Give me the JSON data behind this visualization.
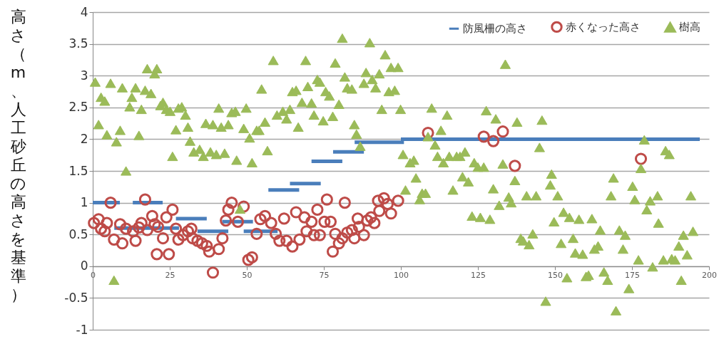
{
  "chart_data": {
    "type": "scatter",
    "ylabel": "高さ（m、人工砂丘の高さを基準）",
    "xlim": [
      0,
      200
    ],
    "xticks": [
      0,
      25,
      50,
      75,
      100,
      125,
      150,
      175,
      200
    ],
    "ylim": [
      -1,
      4
    ],
    "yticks": [
      -1,
      -0.5,
      0,
      0.5,
      1,
      1.5,
      2,
      2.5,
      3,
      3.5,
      4
    ],
    "grid": "y",
    "legend": "top right",
    "series": [
      {
        "name": "防風柵の高さ",
        "type": "line",
        "color": "#4a7ebb",
        "line_style": "solid",
        "x": [
          0,
          8.8,
          null,
          13,
          22.7,
          null,
          7,
          28,
          null,
          27,
          37,
          null,
          34,
          44,
          null,
          42,
          52,
          null,
          49,
          60,
          null,
          57,
          67,
          null,
          64,
          74,
          null,
          71,
          81,
          null,
          78,
          88,
          null,
          85,
          101,
          null,
          100,
          197
        ],
        "values": [
          1,
          1,
          null,
          1,
          1,
          null,
          0.6,
          0.6,
          null,
          0.75,
          0.75,
          null,
          0.55,
          0.55,
          null,
          0.7,
          0.7,
          null,
          0.55,
          0.55,
          null,
          1.2,
          1.2,
          null,
          1.3,
          1.3,
          null,
          1.65,
          1.65,
          null,
          1.8,
          1.8,
          null,
          1.95,
          1.95,
          null,
          2,
          2
        ]
      },
      {
        "name": "赤くなった高さ",
        "type": "scatter",
        "color": "#be4b48",
        "marker": "circle",
        "x": [
          0.4,
          1.9,
          2.7,
          3.9,
          4.6,
          5.8,
          6.9,
          8.9,
          9.6,
          10.8,
          13.1,
          13.9,
          15,
          15.8,
          17,
          17.7,
          19.3,
          20.1,
          20.8,
          21.2,
          22.8,
          23.9,
          24.7,
          25.9,
          27,
          27.8,
          29.3,
          30.9,
          32,
          32.4,
          34,
          35.5,
          37,
          37.8,
          39,
          40.9,
          42.1,
          43.2,
          44,
          45.1,
          47.1,
          49,
          50.5,
          51.7,
          53.2,
          54.4,
          55.9,
          57.9,
          59.4,
          60.6,
          62.1,
          62.9,
          64.8,
          66,
          67.1,
          68.7,
          69.4,
          71,
          71.8,
          72.9,
          73.7,
          75.2,
          76,
          77.2,
          77.9,
          78.7,
          79.9,
          81,
          81.8,
          82.6,
          84.1,
          84.9,
          86,
          86.4,
          88,
          89.1,
          90.3,
          91.4,
          92.6,
          93,
          94.5,
          95.7,
          96.8,
          99.1,
          108.8,
          126.9,
          130,
          133.1,
          137,
          177.9
        ],
        "values": [
          0.68,
          0.74,
          0.59,
          0.55,
          0.68,
          1.0,
          0.42,
          0.66,
          0.36,
          0.59,
          0.55,
          0.4,
          0.61,
          0.68,
          1.05,
          0.57,
          0.79,
          0.66,
          0.19,
          0.62,
          0.44,
          0.77,
          0.19,
          0.89,
          0.59,
          0.42,
          0.49,
          0.55,
          0.59,
          0.44,
          0.4,
          0.36,
          0.32,
          0.23,
          -0.1,
          0.27,
          0.44,
          0.72,
          0.89,
          1.0,
          0.7,
          0.94,
          0.1,
          0.14,
          0.51,
          0.74,
          0.79,
          0.68,
          0.51,
          0.4,
          0.75,
          0.4,
          0.31,
          0.85,
          0.42,
          0.77,
          0.55,
          0.7,
          0.49,
          0.89,
          0.49,
          0.7,
          1.05,
          0.7,
          0.23,
          0.51,
          0.36,
          0.44,
          1.0,
          0.53,
          0.57,
          0.44,
          0.75,
          0.62,
          0.49,
          0.72,
          0.77,
          0.68,
          1.03,
          0.87,
          1.07,
          0.98,
          0.83,
          1.03,
          2.1,
          2.04,
          1.97,
          2.12,
          1.58,
          1.69
        ]
      },
      {
        "name": "樹高",
        "type": "scatter",
        "color": "#9bbb59",
        "marker": "triangle",
        "x": [
          0.8,
          1.9,
          2.7,
          3.9,
          4.6,
          5.8,
          6.9,
          7.7,
          8.9,
          9.6,
          10.8,
          12,
          12.7,
          13.9,
          15,
          15.8,
          17,
          17.7,
          18.9,
          20.1,
          20.8,
          22,
          22.8,
          23.9,
          25.1,
          25.9,
          27,
          27.8,
          28.9,
          30.1,
          30.9,
          31.6,
          32.8,
          34.7,
          35.9,
          36.7,
          38.2,
          39,
          40.1,
          40.9,
          41.7,
          42.8,
          44,
          45.1,
          46.3,
          46.7,
          47.8,
          49,
          49.8,
          50.9,
          51.7,
          53.2,
          54,
          54.8,
          55.9,
          56.7,
          58.6,
          59.8,
          61.7,
          62.9,
          64,
          64.8,
          66,
          66.7,
          67.9,
          69.1,
          69.8,
          71,
          71.8,
          72.9,
          73.7,
          74.8,
          75.6,
          76.8,
          77.9,
          78.7,
          79.9,
          81,
          81.8,
          82.6,
          84.1,
          84.9,
          85.6,
          86.8,
          88,
          88.7,
          89.9,
          90.7,
          91.8,
          93,
          93.8,
          94.9,
          96.1,
          96.8,
          98,
          99.1,
          99.9,
          100.7,
          101.5,
          103,
          104.2,
          104.9,
          106.1,
          106.9,
          108,
          108.8,
          110,
          111.1,
          111.9,
          113,
          113.8,
          115,
          115.7,
          116.9,
          118.1,
          119.2,
          120,
          120.8,
          121.9,
          123.1,
          123.8,
          125,
          125.8,
          126.9,
          127.7,
          128.9,
          130,
          130.8,
          131.9,
          133.1,
          133.9,
          135,
          135.8,
          137,
          137.7,
          138.9,
          139.7,
          140.8,
          141.6,
          142.8,
          143.9,
          145,
          145.8,
          147,
          148.5,
          148.9,
          149.7,
          150.9,
          152,
          152.8,
          153.9,
          154.7,
          155.9,
          156.6,
          157.8,
          159,
          160.1,
          160.9,
          162,
          162.8,
          164,
          164.7,
          165.9,
          167.1,
          168.2,
          169,
          169.8,
          170.9,
          172.1,
          172.8,
          174,
          175.2,
          175.9,
          177.1,
          177.9,
          179,
          179.8,
          180.9,
          181.7,
          183.3,
          183.6,
          185.2,
          185.9,
          187.1,
          187.9,
          189,
          190.2,
          191,
          191.7,
          192.9,
          194.1,
          194.8
        ],
        "values": [
          2.9,
          2.23,
          2.66,
          2.6,
          2.07,
          2.88,
          -0.22,
          1.96,
          2.14,
          2.81,
          1.5,
          2.51,
          2.66,
          2.81,
          2.06,
          2.47,
          2.77,
          3.11,
          2.72,
          3.03,
          3.11,
          2.53,
          2.58,
          2.47,
          2.44,
          1.73,
          2.15,
          2.49,
          2.51,
          2.38,
          2.19,
          1.97,
          1.8,
          1.84,
          1.73,
          2.25,
          1.8,
          2.23,
          1.76,
          2.49,
          2.19,
          1.78,
          2.23,
          2.42,
          2.44,
          1.67,
          0.9,
          2.17,
          2.49,
          2.02,
          1.63,
          2.14,
          2.14,
          2.79,
          2.27,
          1.82,
          3.24,
          2.38,
          2.44,
          2.32,
          2.47,
          2.75,
          2.77,
          2.19,
          2.58,
          3.24,
          2.83,
          2.57,
          2.38,
          2.94,
          2.9,
          2.29,
          2.75,
          2.68,
          2.36,
          3.2,
          2.55,
          3.59,
          2.98,
          2.81,
          2.79,
          2.23,
          2.08,
          1.89,
          2.88,
          3.05,
          3.52,
          2.94,
          2.81,
          3.03,
          2.47,
          3.33,
          2.75,
          3.13,
          2.77,
          3.13,
          2.47,
          1.76,
          1.2,
          1.63,
          1.67,
          1.39,
          1.05,
          1.15,
          1.15,
          2.04,
          2.49,
          1.91,
          1.73,
          2.14,
          1.63,
          2.38,
          1.73,
          1.2,
          1.73,
          1.73,
          1.41,
          1.8,
          1.33,
          0.79,
          1.63,
          1.56,
          0.77,
          1.56,
          2.45,
          0.74,
          1.22,
          2.32,
          0.96,
          1.61,
          3.18,
          1.09,
          1.0,
          1.35,
          2.27,
          0.44,
          0.4,
          1.11,
          0.34,
          0.51,
          1.11,
          1.87,
          2.3,
          -0.55,
          1.28,
          1.45,
          0.7,
          1.11,
          0.36,
          0.85,
          -0.18,
          0.77,
          0.44,
          0.21,
          0.74,
          0.19,
          -0.16,
          -0.14,
          0.75,
          0.27,
          0.32,
          0.57,
          -0.09,
          -0.22,
          1.11,
          1.39,
          -0.7,
          0.57,
          0.27,
          0.49,
          -0.35,
          1.26,
          1.05,
          0.1,
          1.54,
          1.99,
          0.89,
          1.03,
          -0.01,
          1.11,
          0.68,
          0.1,
          1.82,
          1.76,
          0.12,
          0.1,
          0.32,
          -0.22,
          0.49,
          0.18,
          1.11,
          0.55
        ]
      }
    ]
  }
}
